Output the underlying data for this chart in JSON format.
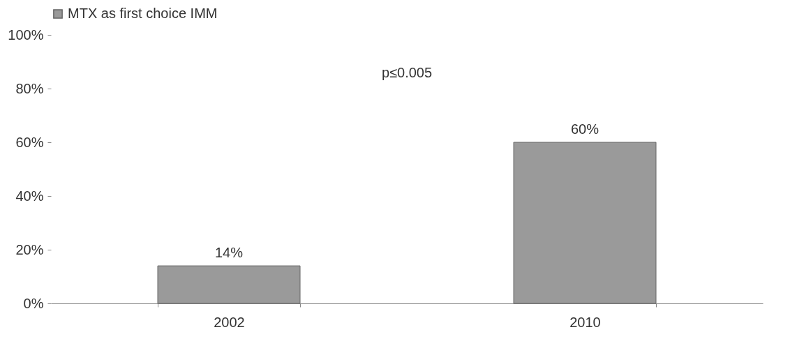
{
  "chart_data": {
    "type": "bar",
    "categories": [
      "2002",
      "2010"
    ],
    "series": [
      {
        "name": "MTX as first choice IMM",
        "color": "#9a9a9a",
        "values": [
          14,
          60
        ],
        "value_labels": [
          "14%",
          "60%"
        ]
      }
    ],
    "ylim": [
      0,
      100
    ],
    "yticks": [
      {
        "value": 0,
        "label": "0%"
      },
      {
        "value": 20,
        "label": "20%"
      },
      {
        "value": 40,
        "label": "40%"
      },
      {
        "value": 60,
        "label": "60%"
      },
      {
        "value": 80,
        "label": "80%"
      },
      {
        "value": 100,
        "label": "100%"
      }
    ],
    "annotations": [
      "p≤0.005"
    ],
    "grid": false,
    "legend": "top"
  }
}
